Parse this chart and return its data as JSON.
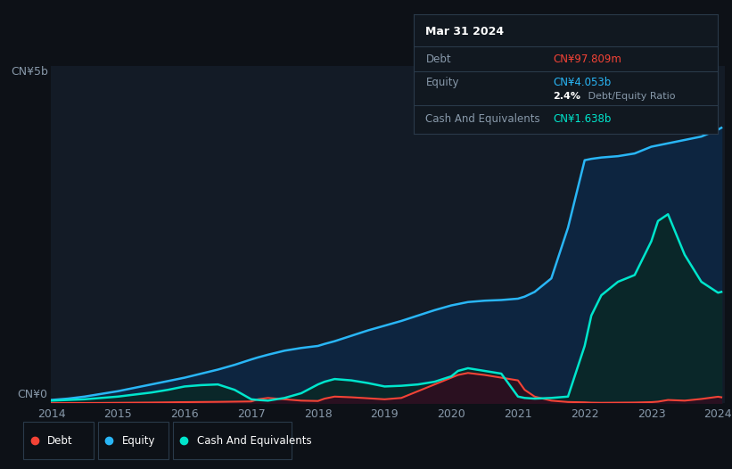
{
  "background_color": "#0d1117",
  "plot_bg_color": "#131b26",
  "grid_color": "#1e2d3d",
  "equity_color": "#29b6f6",
  "debt_color": "#f44336",
  "cash_color": "#00e5cc",
  "equity_fill": "#0d2540",
  "debt_fill": "#2a1020",
  "cash_fill": "#0a2828",
  "ylim": [
    0,
    5.0
  ],
  "ylabel_top": "CN¥5b",
  "ylabel_bottom": "CN¥0",
  "xlabel_years": [
    "2014",
    "2015",
    "2016",
    "2017",
    "2018",
    "2019",
    "2020",
    "2021",
    "2022",
    "2023",
    "2024"
  ],
  "tooltip_title": "Mar 31 2024",
  "tooltip_debt_label": "Debt",
  "tooltip_debt_value": "CN¥97.809m",
  "tooltip_equity_label": "Equity",
  "tooltip_equity_value": "CN¥4.053b",
  "tooltip_ratio_bold": "2.4%",
  "tooltip_ratio_rest": " Debt/Equity Ratio",
  "tooltip_cash_label": "Cash And Equivalents",
  "tooltip_cash_value": "CN¥1.638b",
  "legend_labels": [
    "Debt",
    "Equity",
    "Cash And Equivalents"
  ],
  "x_points": [
    2014.0,
    2014.25,
    2014.5,
    2014.75,
    2015.0,
    2015.25,
    2015.5,
    2015.75,
    2016.0,
    2016.25,
    2016.5,
    2016.75,
    2017.0,
    2017.1,
    2017.25,
    2017.5,
    2017.75,
    2018.0,
    2018.1,
    2018.25,
    2018.5,
    2018.75,
    2019.0,
    2019.25,
    2019.5,
    2019.75,
    2020.0,
    2020.1,
    2020.25,
    2020.5,
    2020.75,
    2021.0,
    2021.1,
    2021.25,
    2021.5,
    2021.75,
    2022.0,
    2022.1,
    2022.25,
    2022.5,
    2022.75,
    2023.0,
    2023.1,
    2023.25,
    2023.5,
    2023.75,
    2024.0,
    2024.05
  ],
  "equity_pts": [
    0.05,
    0.07,
    0.1,
    0.14,
    0.18,
    0.23,
    0.28,
    0.33,
    0.38,
    0.44,
    0.5,
    0.57,
    0.65,
    0.68,
    0.72,
    0.78,
    0.82,
    0.85,
    0.88,
    0.92,
    1.0,
    1.08,
    1.15,
    1.22,
    1.3,
    1.38,
    1.45,
    1.47,
    1.5,
    1.52,
    1.53,
    1.55,
    1.58,
    1.65,
    1.85,
    2.6,
    3.6,
    3.62,
    3.64,
    3.66,
    3.7,
    3.8,
    3.82,
    3.85,
    3.9,
    3.95,
    4.053,
    4.08
  ],
  "debt_pts": [
    0.003,
    0.004,
    0.005,
    0.006,
    0.008,
    0.01,
    0.012,
    0.015,
    0.018,
    0.02,
    0.022,
    0.025,
    0.028,
    0.06,
    0.08,
    0.06,
    0.04,
    0.035,
    0.07,
    0.1,
    0.09,
    0.075,
    0.06,
    0.08,
    0.18,
    0.28,
    0.38,
    0.42,
    0.45,
    0.42,
    0.38,
    0.34,
    0.2,
    0.1,
    0.04,
    0.02,
    0.015,
    0.01,
    0.008,
    0.01,
    0.012,
    0.018,
    0.025,
    0.05,
    0.04,
    0.065,
    0.098,
    0.09
  ],
  "cash_pts": [
    0.04,
    0.05,
    0.06,
    0.08,
    0.1,
    0.13,
    0.16,
    0.2,
    0.25,
    0.27,
    0.28,
    0.2,
    0.06,
    0.05,
    0.04,
    0.08,
    0.15,
    0.28,
    0.32,
    0.36,
    0.34,
    0.3,
    0.25,
    0.26,
    0.28,
    0.32,
    0.4,
    0.48,
    0.52,
    0.48,
    0.44,
    0.1,
    0.08,
    0.07,
    0.08,
    0.1,
    0.85,
    1.3,
    1.6,
    1.8,
    1.9,
    2.4,
    2.7,
    2.8,
    2.2,
    1.8,
    1.638,
    1.65
  ]
}
